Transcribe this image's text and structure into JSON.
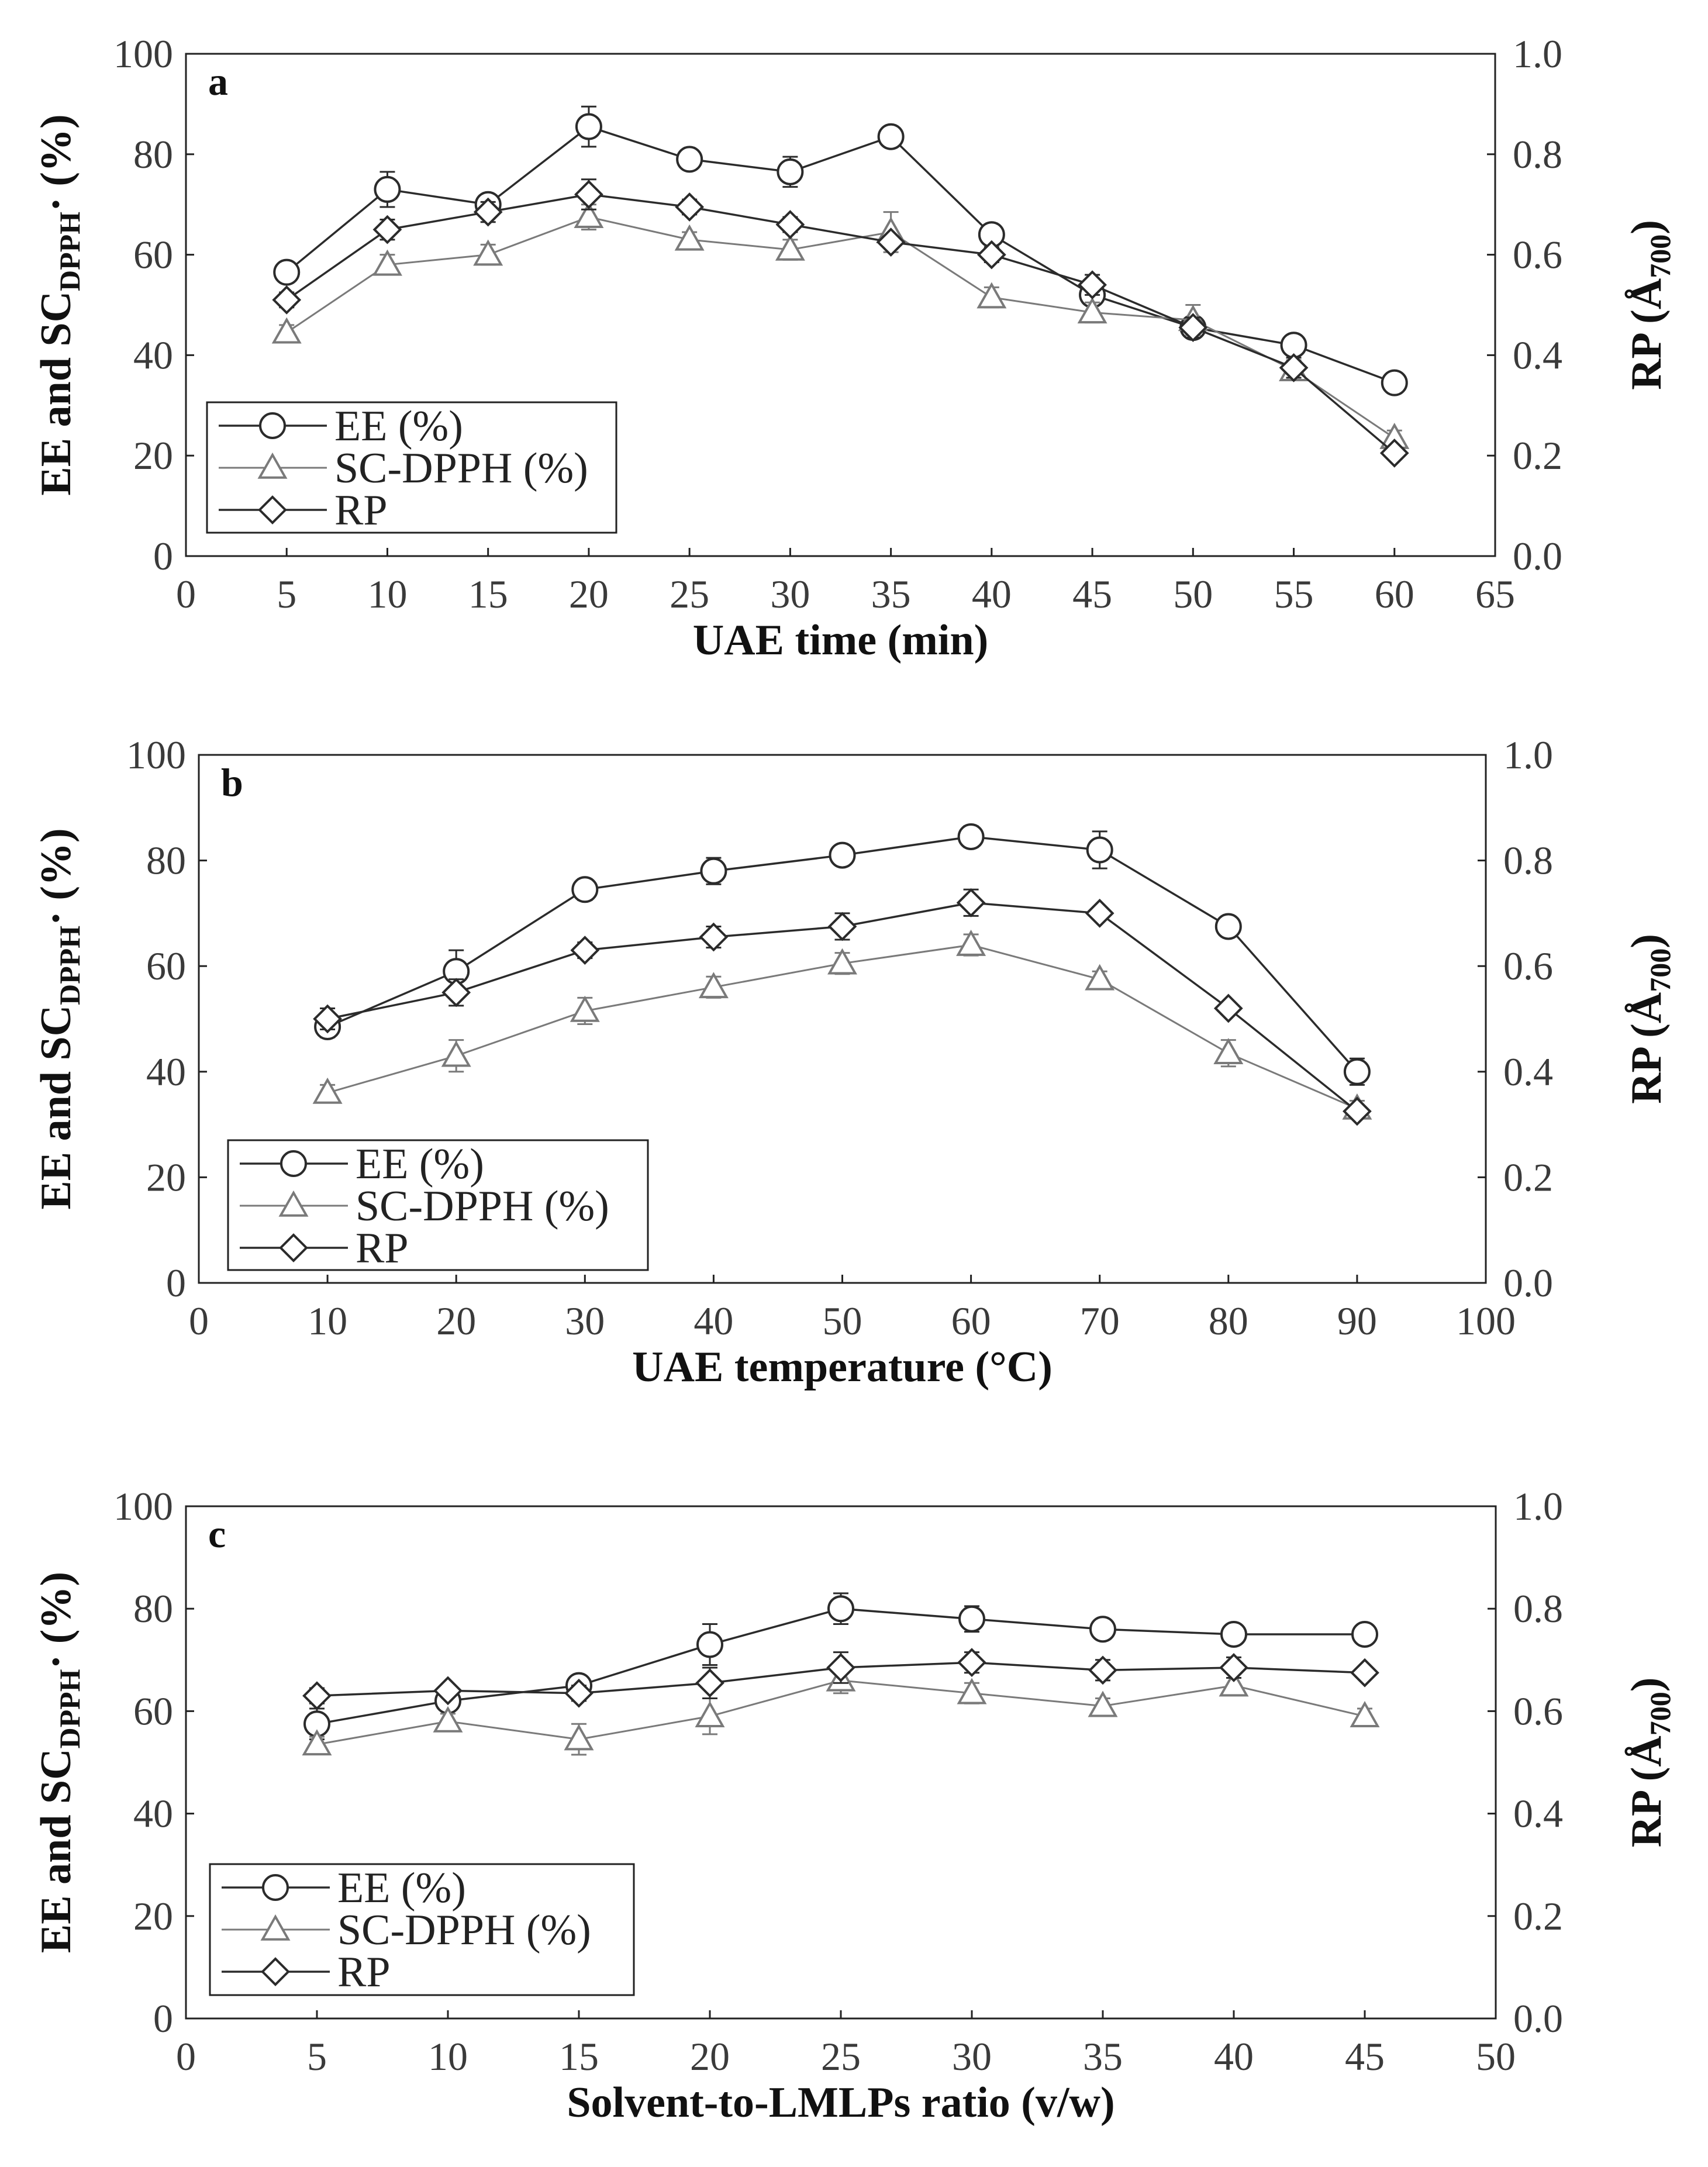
{
  "chart_data": [
    {
      "type": "line",
      "panel": "a",
      "xlabel": "UAE time (min)",
      "ylabel": "EE and SC",
      "ylabel_sub": "DPPH",
      "ylabel_suffix": "· (%)",
      "y2label": "RP (Å",
      "y2label_sub": "700",
      "y2label_suffix": ")",
      "xlim": [
        0,
        65
      ],
      "xticks": [
        0,
        5,
        10,
        15,
        20,
        25,
        30,
        35,
        40,
        45,
        50,
        55,
        60,
        65
      ],
      "ylim": [
        0,
        100
      ],
      "yticks": [
        0,
        20,
        40,
        60,
        80,
        100
      ],
      "y2lim": [
        0,
        1.0
      ],
      "y2ticks": [
        "0.0",
        "0.2",
        "0.4",
        "0.6",
        "0.8",
        "1.0"
      ],
      "x": [
        5,
        10,
        15,
        20,
        25,
        30,
        35,
        40,
        45,
        50,
        55,
        60
      ],
      "series": [
        {
          "name": "EE (%)",
          "marker": "circle",
          "values": [
            56.5,
            73,
            70,
            85.5,
            79,
            76.5,
            83.5,
            64,
            52,
            45.5,
            42,
            34.5
          ],
          "errors": [
            2,
            3.5,
            2,
            4,
            2,
            3,
            1,
            2,
            2,
            2,
            1.5,
            1
          ]
        },
        {
          "name": "SC-DPPH (%)",
          "marker": "triangle",
          "values": [
            44.5,
            58,
            60,
            67.5,
            63,
            61,
            64.5,
            51.5,
            48.5,
            47,
            37,
            23.5
          ],
          "errors": [
            1.5,
            2,
            2,
            2.5,
            1.5,
            2,
            4,
            2,
            2,
            3,
            2,
            1.5
          ]
        },
        {
          "name": "RP",
          "marker": "diamond",
          "values": [
            51,
            65,
            68.5,
            72,
            69.5,
            66,
            62.5,
            60,
            54,
            45.5,
            37.5,
            20.5
          ],
          "errors": [
            1.5,
            2,
            2,
            3,
            1.5,
            1.5,
            1,
            1.5,
            2,
            2,
            2,
            1
          ]
        }
      ],
      "legend": {
        "location": "bottom-left",
        "entries": [
          "EE (%)",
          "SC-DPPH (%)",
          "RP"
        ]
      }
    },
    {
      "type": "line",
      "panel": "b",
      "xlabel": "UAE temperature (°C)",
      "ylabel": "EE and SC",
      "ylabel_sub": "DPPH",
      "ylabel_suffix": "· (%)",
      "y2label": "RP (Å",
      "y2label_sub": "700",
      "y2label_suffix": ")",
      "xlim": [
        0,
        100
      ],
      "xticks": [
        0,
        10,
        20,
        30,
        40,
        50,
        60,
        70,
        80,
        90,
        100
      ],
      "ylim": [
        0,
        100
      ],
      "yticks": [
        0,
        20,
        40,
        60,
        80,
        100
      ],
      "y2lim": [
        0,
        1.0
      ],
      "y2ticks": [
        "0.0",
        "0.2",
        "0.4",
        "0.6",
        "0.8",
        "1.0"
      ],
      "x": [
        10,
        20,
        30,
        40,
        50,
        60,
        70,
        80,
        90
      ],
      "series": [
        {
          "name": "EE (%)",
          "marker": "circle",
          "values": [
            48.5,
            59,
            74.5,
            78,
            81,
            84.5,
            82,
            67.5,
            40
          ],
          "errors": [
            2,
            4,
            2,
            2.5,
            1.5,
            2,
            3.5,
            1.5,
            2.5
          ]
        },
        {
          "name": "SC-DPPH (%)",
          "marker": "triangle",
          "values": [
            36,
            43,
            51.5,
            56,
            60.5,
            64,
            57.5,
            43.5,
            33
          ],
          "errors": [
            1.5,
            3,
            2.5,
            2,
            2,
            2,
            1.5,
            2.5,
            1.5
          ]
        },
        {
          "name": "RP",
          "marker": "diamond",
          "values": [
            50,
            55,
            63,
            65.5,
            67.5,
            72,
            70,
            52,
            32.5
          ],
          "errors": [
            2,
            2.5,
            1.5,
            2,
            2.5,
            2.5,
            1,
            1,
            1
          ]
        }
      ],
      "legend": {
        "location": "bottom-left",
        "entries": [
          "EE (%)",
          "SC-DPPH (%)",
          "RP"
        ]
      }
    },
    {
      "type": "line",
      "panel": "c",
      "xlabel": "Solvent-to-LMLPs ratio (v/w)",
      "ylabel": "EE and SC",
      "ylabel_sub": "DPPH",
      "ylabel_suffix": "· (%)",
      "y2label": "RP (Å",
      "y2label_sub": "700",
      "y2label_suffix": ")",
      "xlim": [
        0,
        50
      ],
      "xticks": [
        0,
        5,
        10,
        15,
        20,
        25,
        30,
        35,
        40,
        45,
        50
      ],
      "ylim": [
        0,
        100
      ],
      "yticks": [
        0,
        20,
        40,
        60,
        80,
        100
      ],
      "y2lim": [
        0,
        1.0
      ],
      "y2ticks": [
        "0.0",
        "0.2",
        "0.4",
        "0.6",
        "0.8",
        "1.0"
      ],
      "x": [
        5,
        10,
        15,
        20,
        25,
        30,
        35,
        40,
        45
      ],
      "series": [
        {
          "name": "EE (%)",
          "marker": "circle",
          "values": [
            57.5,
            62,
            65,
            73,
            80,
            78,
            76,
            75,
            75
          ],
          "errors": [
            3,
            2,
            2,
            4,
            3,
            2.5,
            1.5,
            1,
            1.5
          ]
        },
        {
          "name": "SC-DPPH (%)",
          "marker": "triangle",
          "values": [
            53.5,
            58,
            54.5,
            59,
            66,
            63.5,
            61,
            65,
            59
          ],
          "errors": [
            1.5,
            1.5,
            3,
            3.5,
            2.5,
            2,
            1.5,
            1.5,
            1.5
          ]
        },
        {
          "name": "RP",
          "marker": "diamond",
          "values": [
            63,
            64,
            63.5,
            65.5,
            68.5,
            69.5,
            68,
            68.5,
            67.5
          ],
          "errors": [
            1.5,
            1,
            1.5,
            3,
            3,
            2,
            2,
            2,
            1
          ]
        }
      ],
      "legend": {
        "location": "bottom-left",
        "entries": [
          "EE (%)",
          "SC-DPPH (%)",
          "RP"
        ]
      }
    }
  ]
}
